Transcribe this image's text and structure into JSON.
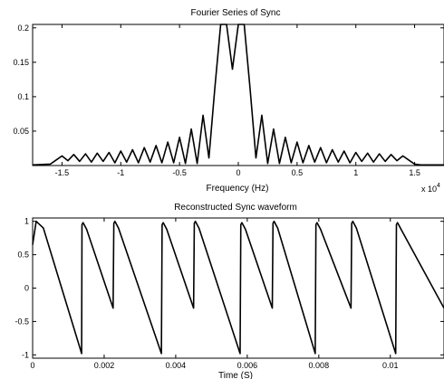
{
  "chart_data": [
    {
      "type": "line",
      "title": "Fourier Series of Sync",
      "xlabel": "Frequency (Hz)",
      "ylabel": "",
      "x_multiplier_label": "x 10",
      "x_multiplier_exponent": "4",
      "xlim": [
        -17500,
        17500
      ],
      "ylim": [
        0,
        0.205
      ],
      "xticks": [
        -15000,
        -10000,
        -5000,
        0,
        5000,
        10000,
        15000
      ],
      "xtick_labels": [
        "-1.5",
        "-1",
        "-0.5",
        "0",
        "0.5",
        "1",
        "1.5"
      ],
      "yticks": [
        0.05,
        0.1,
        0.15,
        0.2
      ],
      "ytick_labels": [
        "0.05",
        "0.1",
        "0.15",
        "0.2"
      ],
      "grid": false,
      "series": [
        {
          "x": [
            -17500,
            -16000,
            -15500,
            -15000,
            -14500,
            -14000,
            -13500,
            -13000,
            -12500,
            -12000,
            -11500,
            -11000,
            -10500,
            -10000,
            -9500,
            -9000,
            -8500,
            -8000,
            -7500,
            -7000,
            -6500,
            -6000,
            -5500,
            -5000,
            -4500,
            -4000,
            -3500,
            -3000,
            -2500,
            -2000,
            -1500,
            -1000,
            -500,
            0,
            500,
            1000,
            1500,
            2000,
            2500,
            3000,
            3500,
            4000,
            4500,
            5000,
            5500,
            6000,
            6500,
            7000,
            7500,
            8000,
            8500,
            9000,
            9500,
            10000,
            10500,
            11000,
            11500,
            12000,
            12500,
            13000,
            13500,
            14000,
            14500,
            15000,
            15500,
            16000,
            17500
          ],
          "y": [
            0.001,
            0.002,
            0.008,
            0.014,
            0.007,
            0.016,
            0.006,
            0.017,
            0.005,
            0.018,
            0.006,
            0.019,
            0.004,
            0.021,
            0.005,
            0.023,
            0.004,
            0.026,
            0.005,
            0.029,
            0.004,
            0.034,
            0.004,
            0.041,
            0.003,
            0.053,
            0.003,
            0.073,
            0.011,
            0.112,
            0.205,
            0.205,
            0.14,
            0.205,
            0.205,
            0.112,
            0.011,
            0.073,
            0.003,
            0.053,
            0.003,
            0.041,
            0.004,
            0.034,
            0.004,
            0.029,
            0.005,
            0.026,
            0.004,
            0.023,
            0.005,
            0.021,
            0.004,
            0.019,
            0.006,
            0.018,
            0.005,
            0.017,
            0.006,
            0.016,
            0.007,
            0.014,
            0.008,
            0.002,
            0.001,
            0.001,
            0.001
          ]
        }
      ]
    },
    {
      "type": "line",
      "title": "Reconstructed Sync waveform",
      "xlabel": "Time (S)",
      "ylabel": "",
      "xlim": [
        0,
        0.0115
      ],
      "ylim": [
        -1.05,
        1.05
      ],
      "xticks": [
        0,
        0.002,
        0.004,
        0.006,
        0.008,
        0.01
      ],
      "xtick_labels": [
        "0",
        "0.002",
        "0.004",
        "0.006",
        "0.008",
        "0.01"
      ],
      "yticks": [
        -1,
        -0.5,
        0,
        0.5,
        1
      ],
      "ytick_labels": [
        "-1",
        "-0.5",
        "0",
        "0.5",
        "1"
      ],
      "grid": false,
      "series": [
        {
          "x": [
            0,
            0.0001,
            0.0003,
            0.00137,
            0.00138,
            0.00141,
            0.00151,
            0.00225,
            0.00227,
            0.0023,
            0.0024,
            0.0036,
            0.00362,
            0.00365,
            0.00375,
            0.0045,
            0.00452,
            0.00455,
            0.00465,
            0.0058,
            0.00582,
            0.00585,
            0.00595,
            0.0067,
            0.00672,
            0.00675,
            0.00685,
            0.0079,
            0.00792,
            0.00795,
            0.00805,
            0.0089,
            0.00892,
            0.00895,
            0.00905,
            0.01015,
            0.01017,
            0.0102,
            0.0103,
            0.0115
          ],
          "y": [
            0.65,
            1.0,
            0.9,
            -0.98,
            0.95,
            0.98,
            0.88,
            -0.3,
            0.97,
            1.0,
            0.9,
            -0.98,
            0.95,
            0.98,
            0.88,
            -0.3,
            0.97,
            1.0,
            0.9,
            -0.98,
            0.95,
            0.98,
            0.88,
            -0.3,
            0.97,
            1.0,
            0.9,
            -0.98,
            0.95,
            0.98,
            0.88,
            -0.3,
            0.97,
            1.0,
            0.9,
            -0.98,
            0.95,
            0.98,
            0.88,
            -0.3
          ]
        }
      ]
    }
  ]
}
